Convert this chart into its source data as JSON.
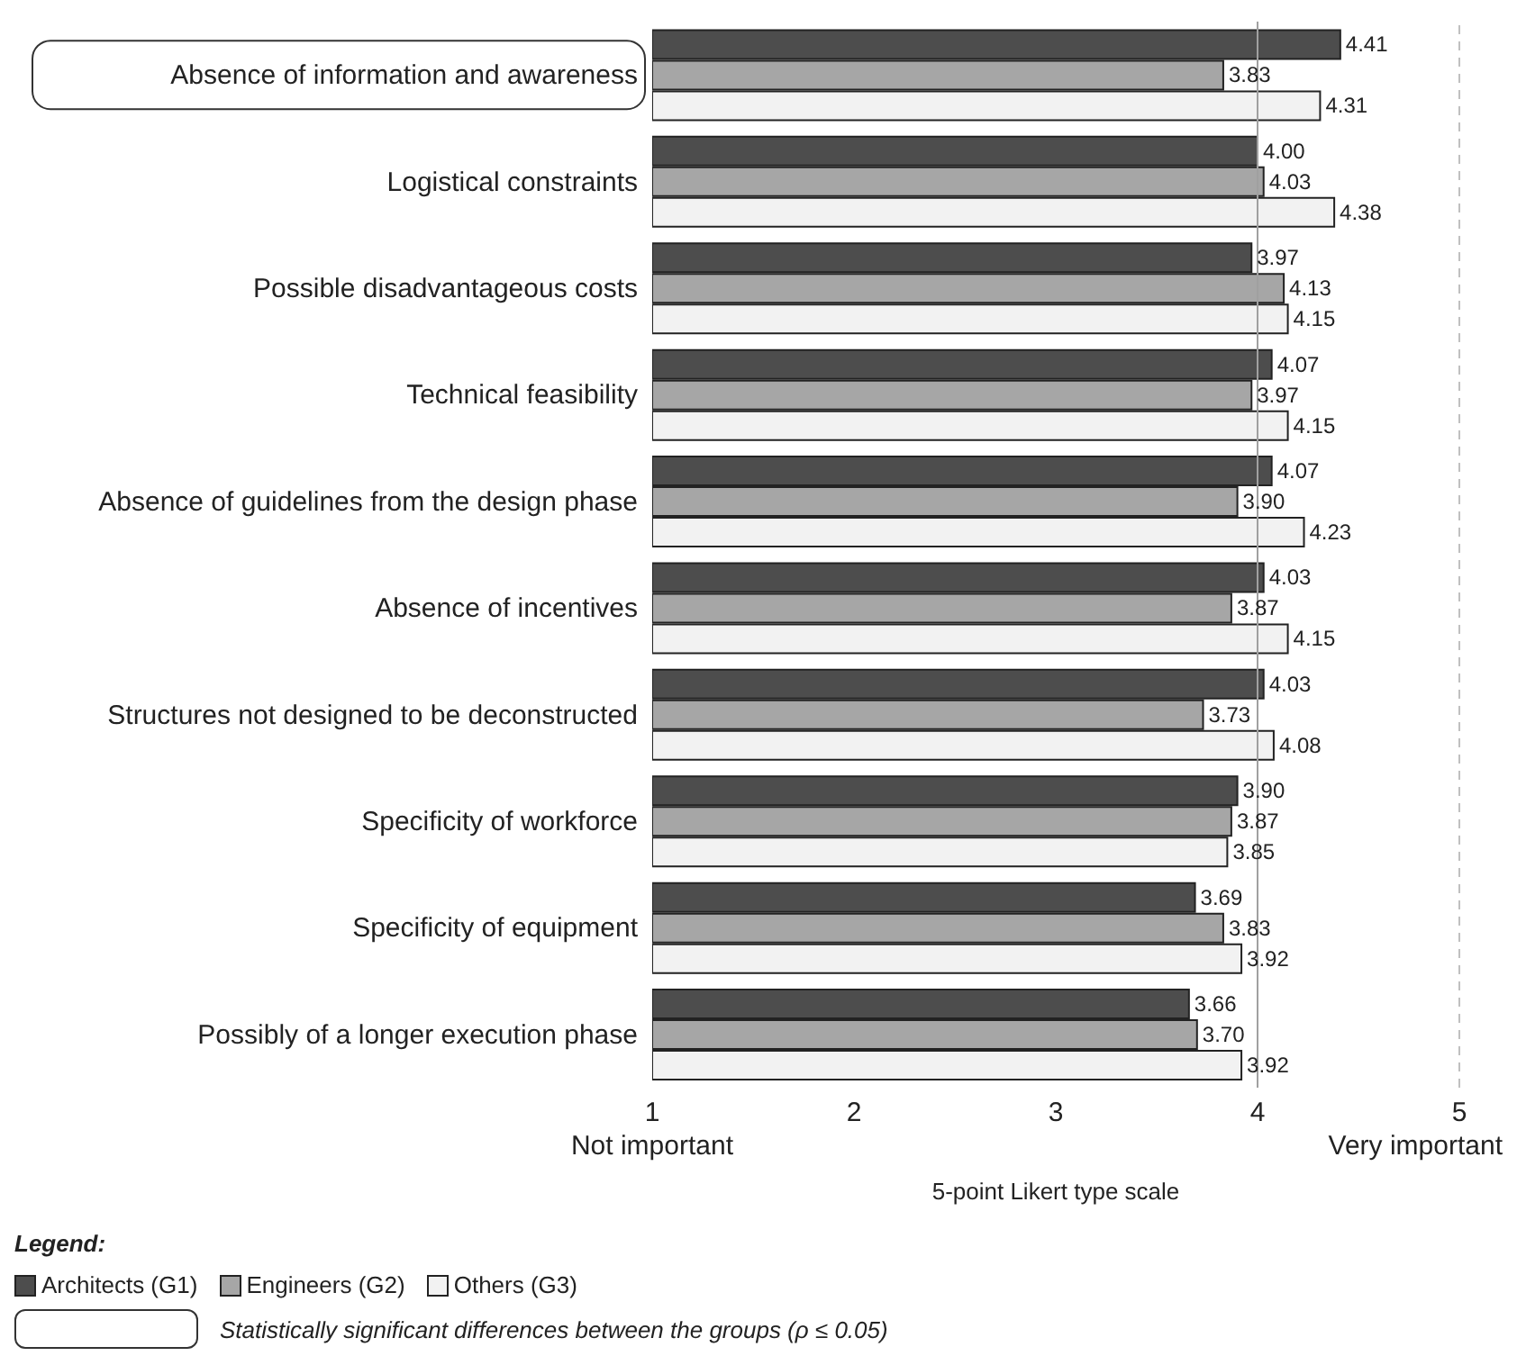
{
  "chart_data": {
    "type": "bar",
    "orientation": "horizontal",
    "xlabel": "5-point Likert type scale",
    "legend_title": "Legend:",
    "legend": "bottom",
    "categories": [
      "Absence of information and awareness",
      "Logistical constraints",
      "Possible disadvantageous costs",
      "Technical feasibility",
      "Absence of guidelines from the design phase",
      "Absence of incentives",
      "Structures not designed to be deconstructed",
      "Specificity of workforce",
      "Specificity of equipment",
      "Possibly of a longer execution phase"
    ],
    "series": [
      {
        "name": "Architects (G1)",
        "color": "#4d4d4d",
        "values": [
          4.41,
          4.0,
          3.97,
          4.07,
          4.07,
          4.03,
          4.03,
          3.9,
          3.69,
          3.66
        ],
        "value_labels": [
          "4.41",
          "4.00",
          "3.97",
          "4.07",
          "4.07",
          "4.03",
          "4.03",
          "3.90",
          "3.69",
          "3.66"
        ]
      },
      {
        "name": "Engineers (G2)",
        "color": "#a6a6a6",
        "values": [
          3.83,
          4.03,
          4.13,
          3.97,
          3.9,
          3.87,
          3.73,
          3.87,
          3.83,
          3.7
        ],
        "value_labels": [
          "3.83",
          "4.03",
          "4.13",
          "3.97",
          "3.90",
          "3.87",
          "3.73",
          "3.87",
          "3.83",
          "3.70"
        ]
      },
      {
        "name": "Others (G3)",
        "color": "#f2f2f2",
        "values": [
          4.31,
          4.38,
          4.15,
          4.15,
          4.23,
          4.15,
          4.08,
          3.85,
          3.92,
          3.92
        ],
        "value_labels": [
          "4.31",
          "4.38",
          "4.15",
          "4.15",
          "4.23",
          "4.15",
          "4.08",
          "3.85",
          "3.92",
          "3.92"
        ]
      }
    ],
    "xlim": [
      1,
      5
    ],
    "xticks": [
      1,
      2,
      3,
      4,
      5
    ],
    "ref_lines": [
      {
        "axis": "x",
        "value": 4,
        "color": "#a0a0a0",
        "line_style": "solid"
      },
      {
        "axis": "x",
        "value": 5,
        "color": "#c0c0c0",
        "line_style": "dashed"
      }
    ],
    "annotations": [
      "Not important",
      "Very important",
      "Statistically significant differences between the groups (ρ ≤ 0.05)"
    ]
  }
}
